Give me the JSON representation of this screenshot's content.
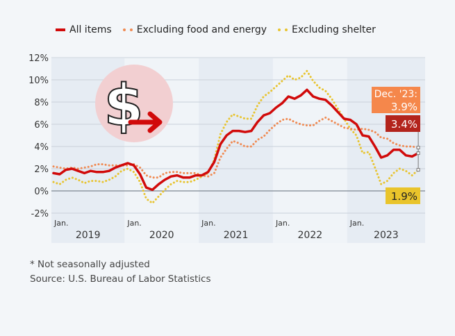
{
  "chart_data": {
    "type": "line",
    "x_start": "Jan. 2019",
    "x_end": "Dec. 2023",
    "frequency": "monthly",
    "ylim": [
      -2,
      12
    ],
    "yticks": [
      "-2%",
      "0%",
      "2%",
      "4%",
      "6%",
      "8%",
      "10%",
      "12%"
    ],
    "yticks_values": [
      -2,
      0,
      2,
      4,
      6,
      8,
      10,
      12
    ],
    "year_labels": [
      "2019",
      "2020",
      "2021",
      "2022",
      "2023"
    ],
    "month_tick_label": "Jan.",
    "grid": true,
    "legend_position": "top",
    "series": [
      {
        "name": "All items",
        "color": "#d10a0a",
        "style": "solid",
        "values": [
          1.6,
          1.5,
          1.9,
          2.0,
          1.8,
          1.6,
          1.8,
          1.7,
          1.7,
          1.8,
          2.1,
          2.3,
          2.5,
          2.3,
          1.5,
          0.3,
          0.1,
          0.6,
          1.0,
          1.3,
          1.4,
          1.2,
          1.2,
          1.4,
          1.4,
          1.7,
          2.6,
          4.2,
          5.0,
          5.4,
          5.4,
          5.3,
          5.4,
          6.2,
          6.8,
          7.0,
          7.5,
          7.9,
          8.5,
          8.3,
          8.6,
          9.1,
          8.5,
          8.3,
          8.2,
          7.7,
          7.1,
          6.5,
          6.4,
          6.0,
          5.0,
          4.9,
          4.0,
          3.0,
          3.2,
          3.7,
          3.7,
          3.2,
          3.1,
          3.4
        ]
      },
      {
        "name": "Excluding food and energy",
        "color": "#f08a52",
        "style": "dotted",
        "values": [
          2.2,
          2.1,
          2.0,
          2.1,
          2.0,
          2.1,
          2.2,
          2.4,
          2.4,
          2.3,
          2.3,
          2.3,
          2.3,
          2.4,
          2.1,
          1.4,
          1.2,
          1.2,
          1.6,
          1.7,
          1.7,
          1.6,
          1.6,
          1.6,
          1.4,
          1.3,
          1.6,
          3.0,
          3.8,
          4.5,
          4.3,
          4.0,
          4.0,
          4.6,
          4.9,
          5.5,
          6.0,
          6.4,
          6.5,
          6.2,
          6.0,
          5.9,
          5.9,
          6.3,
          6.6,
          6.3,
          6.0,
          5.7,
          5.6,
          5.5,
          5.6,
          5.5,
          5.3,
          4.8,
          4.7,
          4.3,
          4.1,
          4.0,
          4.0,
          3.9
        ]
      },
      {
        "name": "Excluding shelter",
        "color": "#e8c430",
        "style": "dotted",
        "values": [
          0.8,
          0.6,
          1.0,
          1.2,
          1.0,
          0.7,
          0.9,
          0.9,
          0.8,
          1.0,
          1.3,
          1.8,
          2.0,
          1.7,
          0.8,
          -0.7,
          -1.1,
          -0.5,
          0.1,
          0.6,
          0.9,
          0.8,
          0.8,
          1.0,
          1.3,
          1.6,
          2.8,
          5.1,
          6.2,
          6.9,
          6.7,
          6.5,
          6.5,
          7.7,
          8.5,
          8.9,
          9.4,
          9.9,
          10.4,
          10.0,
          10.2,
          10.8,
          9.9,
          9.3,
          9.0,
          8.3,
          7.4,
          6.5,
          5.6,
          5.0,
          3.4,
          3.5,
          2.1,
          0.6,
          0.9,
          1.6,
          2.0,
          1.8,
          1.4,
          1.9
        ]
      }
    ],
    "annotations": [
      {
        "text": "Dec. '23:",
        "value": "3.9%",
        "color": "#f5874b"
      },
      {
        "value": "3.4%",
        "color": "#b3241c"
      },
      {
        "value": "1.9%",
        "color": "#e9c42b"
      }
    ]
  },
  "notes": {
    "line1": "* Not seasonally adjusted",
    "line2": "Source: U.S. Bureau of Labor Statistics"
  }
}
